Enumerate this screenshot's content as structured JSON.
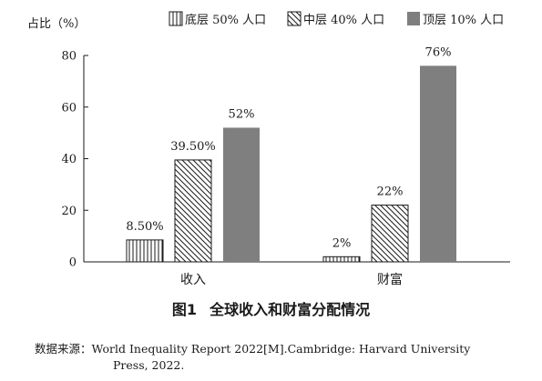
{
  "chart_data": {
    "type": "bar",
    "ylabel": "占比（%）",
    "ylim": [
      0,
      80
    ],
    "yticks": [
      0,
      20,
      40,
      60,
      80
    ],
    "categories": [
      "收入",
      "财富"
    ],
    "legend_position": "top",
    "grid": false,
    "series": [
      {
        "name": "底层 50% 人口",
        "pattern": "vertical-lines",
        "values": [
          8.5,
          2
        ],
        "value_labels": [
          "8.50%",
          "2%"
        ]
      },
      {
        "name": "中层 40% 人口",
        "pattern": "diagonal-lines",
        "values": [
          39.5,
          22
        ],
        "value_labels": [
          "39.50%",
          "22%"
        ]
      },
      {
        "name": "顶层 10% 人口",
        "pattern": "solid",
        "color": "#7f7f7f",
        "values": [
          52,
          76
        ],
        "value_labels": [
          "52%",
          "76%"
        ]
      }
    ]
  },
  "caption": {
    "number": "图1",
    "title": "全球收入和财富分配情况"
  },
  "source": {
    "label": "数据来源：",
    "line1": "World Inequality Report 2022[M].Cambridge: Harvard University",
    "line2": "Press, 2022."
  }
}
